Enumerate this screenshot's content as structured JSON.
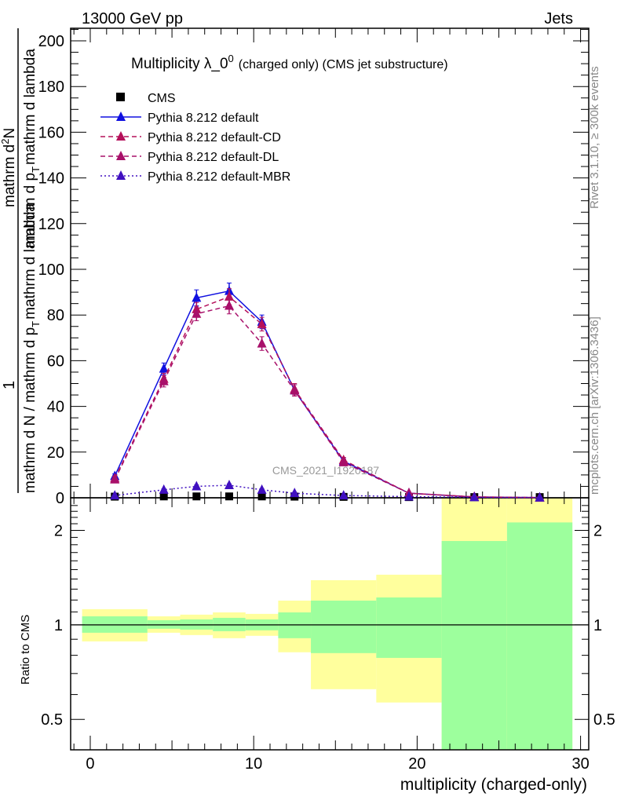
{
  "header": {
    "left": "13000 GeV pp",
    "right": "Jets"
  },
  "side_labels": {
    "rivet": "Rivet 3.1.10, ≥ 300k events",
    "mcplots": "mcplots.cern.ch [arXiv:1306.3436]"
  },
  "watermark": "CMS_2021_I1920187",
  "chart_data": [
    {
      "type": "line",
      "title": "Multiplicity λ_0^0 (charged only) (CMS jet substructure)",
      "title_main": "Multiplicity λ_0",
      "title_sup": "0",
      "title_rest": "(charged only) (CMS jet substructure)",
      "ylabel_parts": {
        "one": "1",
        "den_top": "mathrm d N / mathrm d p",
        "den_sub": "T",
        "den_end": "mathrm d lambda",
        "num_top": "mathrm d",
        "num_sup": "2",
        "num_end": "N",
        "num_den": "mathrm d p",
        "num_den_sub": "T",
        "num_den_end": "mathrm d lambda"
      },
      "xlim": [
        -1.2,
        30.5
      ],
      "ylim": [
        0,
        205.5
      ],
      "yticks": [
        0,
        20,
        40,
        60,
        80,
        100,
        120,
        140,
        160,
        180,
        200
      ],
      "x": [
        1.5,
        4.5,
        6.5,
        8.5,
        10.5,
        12.5,
        15.5,
        19.5,
        23.5,
        27.5
      ],
      "series": [
        {
          "name": "CMS",
          "color": "#000000",
          "style": "data",
          "marker": "square",
          "values": [
            0.5,
            0.6,
            0.6,
            0.6,
            0.6,
            0.5,
            0.4,
            0.3,
            0.3,
            0.3
          ]
        },
        {
          "name": "Pythia 8.212 default",
          "color": "#1010e0",
          "style": "solid",
          "marker": "triangle",
          "values": [
            9.5,
            56.5,
            87.5,
            90.5,
            77,
            47,
            16,
            2,
            0.3,
            0.1
          ],
          "errors": [
            1,
            2.5,
            3.5,
            3.5,
            3,
            2.5,
            1.2,
            0.3,
            0.1,
            0.05
          ]
        },
        {
          "name": "Pythia 8.212 default-CD",
          "color": "#b5105a",
          "style": "dashed",
          "marker": "triangle",
          "values": [
            8.5,
            52,
            82.5,
            88,
            76,
            47.5,
            16.5,
            2,
            0.4,
            0.1
          ],
          "errors": [
            1,
            2.5,
            3,
            3.5,
            3,
            2.5,
            1.2,
            0.3,
            0.1,
            0.05
          ]
        },
        {
          "name": "Pythia 8.212 default-DL",
          "color": "#a8106a",
          "style": "dashed",
          "marker": "triangle",
          "values": [
            8,
            51,
            80.5,
            84,
            67.5,
            47,
            15.5,
            2,
            0.4,
            0.1
          ],
          "errors": [
            1,
            2.5,
            3,
            3.5,
            3,
            2.5,
            1.2,
            0.3,
            0.1,
            0.05
          ]
        },
        {
          "name": "Pythia 8.212 default-MBR",
          "color": "#4010c0",
          "style": "dotted",
          "marker": "triangle",
          "values": [
            1,
            3.5,
            5,
            5.5,
            3.5,
            2,
            1,
            0.5,
            0.2,
            0.1
          ],
          "errors": [
            0.3,
            0.5,
            0.6,
            0.6,
            0.5,
            0.4,
            0.2,
            0.1,
            0.05,
            0.05
          ]
        }
      ]
    },
    {
      "type": "area",
      "ylabel": "Ratio to CMS",
      "xlabel": "multiplicity (charged-only)",
      "scale": "log",
      "xlim": [
        -1.2,
        30.5
      ],
      "ylim": [
        0.4,
        2.54
      ],
      "xticks": [
        0,
        10,
        20,
        30
      ],
      "yticks": [
        0.5,
        1,
        2
      ],
      "bin_edges": [
        -0.5,
        3.5,
        5.5,
        7.5,
        9.5,
        11.5,
        13.5,
        17.5,
        21.5,
        25.5,
        29.5
      ],
      "band_colors": {
        "inner": "#9dff9d",
        "outer": "#ffff9d"
      },
      "inner_band": {
        "low": [
          0.944,
          0.972,
          0.966,
          0.955,
          0.961,
          0.907,
          0.813,
          0.785,
          0.3,
          0.3
        ],
        "high": [
          1.065,
          1.035,
          1.041,
          1.053,
          1.041,
          1.096,
          1.195,
          1.223,
          1.85,
          2.12
        ]
      },
      "outer_band": {
        "low": [
          0.886,
          0.944,
          0.928,
          0.907,
          0.923,
          0.818,
          0.624,
          0.566,
          0.3,
          0.3
        ],
        "high": [
          1.122,
          1.065,
          1.078,
          1.096,
          1.084,
          1.195,
          1.388,
          1.445,
          3.0,
          3.0
        ]
      }
    }
  ]
}
